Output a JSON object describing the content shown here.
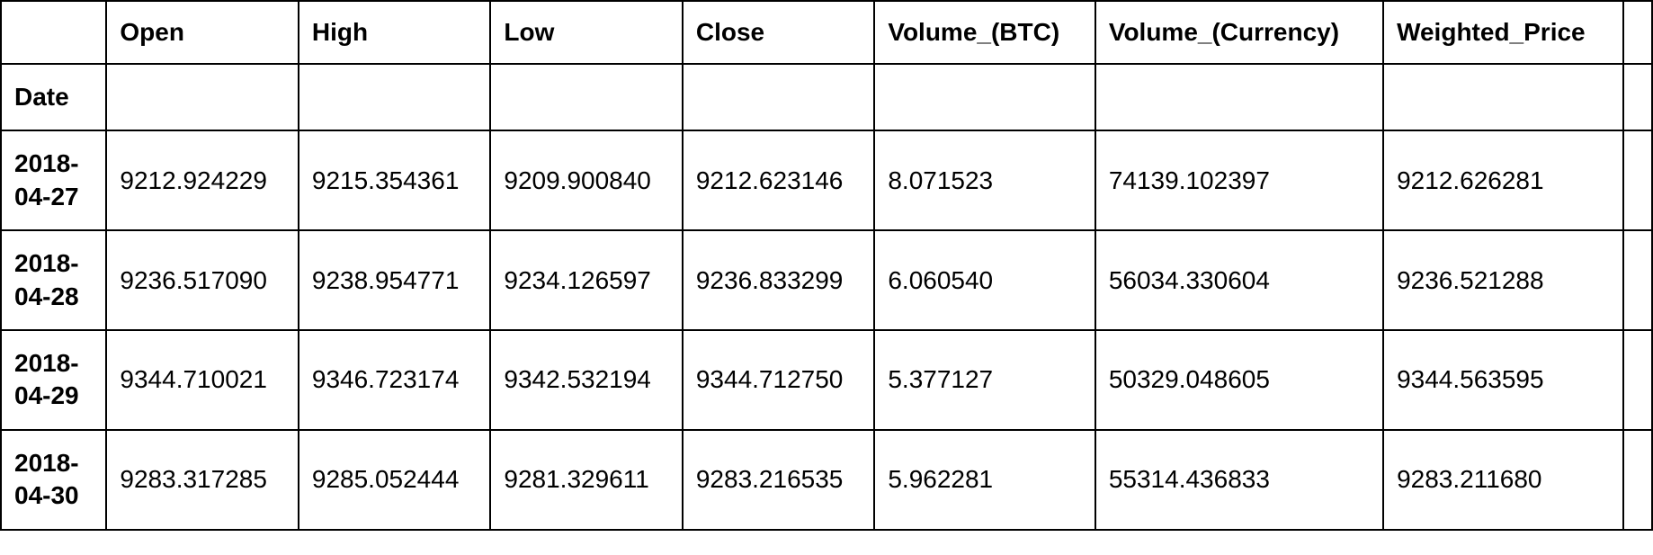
{
  "table": {
    "index_name": "Date",
    "columns": [
      "Open",
      "High",
      "Low",
      "Close",
      "Volume_(BTC)",
      "Volume_(Currency)",
      "Weighted_Price"
    ],
    "rows": [
      {
        "date": "2018-04-27",
        "open": "9212.924229",
        "high": "9215.354361",
        "low": "9209.900840",
        "close": "9212.623146",
        "volume_btc": "8.071523",
        "volume_currency": "74139.102397",
        "weighted_price": "9212.626281"
      },
      {
        "date": "2018-04-28",
        "open": "9236.517090",
        "high": "9238.954771",
        "low": "9234.126597",
        "close": "9236.833299",
        "volume_btc": "6.060540",
        "volume_currency": "56034.330604",
        "weighted_price": "9236.521288"
      },
      {
        "date": "2018-04-29",
        "open": "9344.710021",
        "high": "9346.723174",
        "low": "9342.532194",
        "close": "9344.712750",
        "volume_btc": "5.377127",
        "volume_currency": "50329.048605",
        "weighted_price": "9344.563595"
      },
      {
        "date": "2018-04-30",
        "open": "9283.317285",
        "high": "9285.052444",
        "low": "9281.329611",
        "close": "9283.216535",
        "volume_btc": "5.962281",
        "volume_currency": "55314.436833",
        "weighted_price": "9283.211680"
      }
    ]
  },
  "style": {
    "border_color": "#000000",
    "background_color": "#ffffff",
    "font_size_pt": 21,
    "header_font_weight": 700,
    "cell_font_weight": 400
  }
}
